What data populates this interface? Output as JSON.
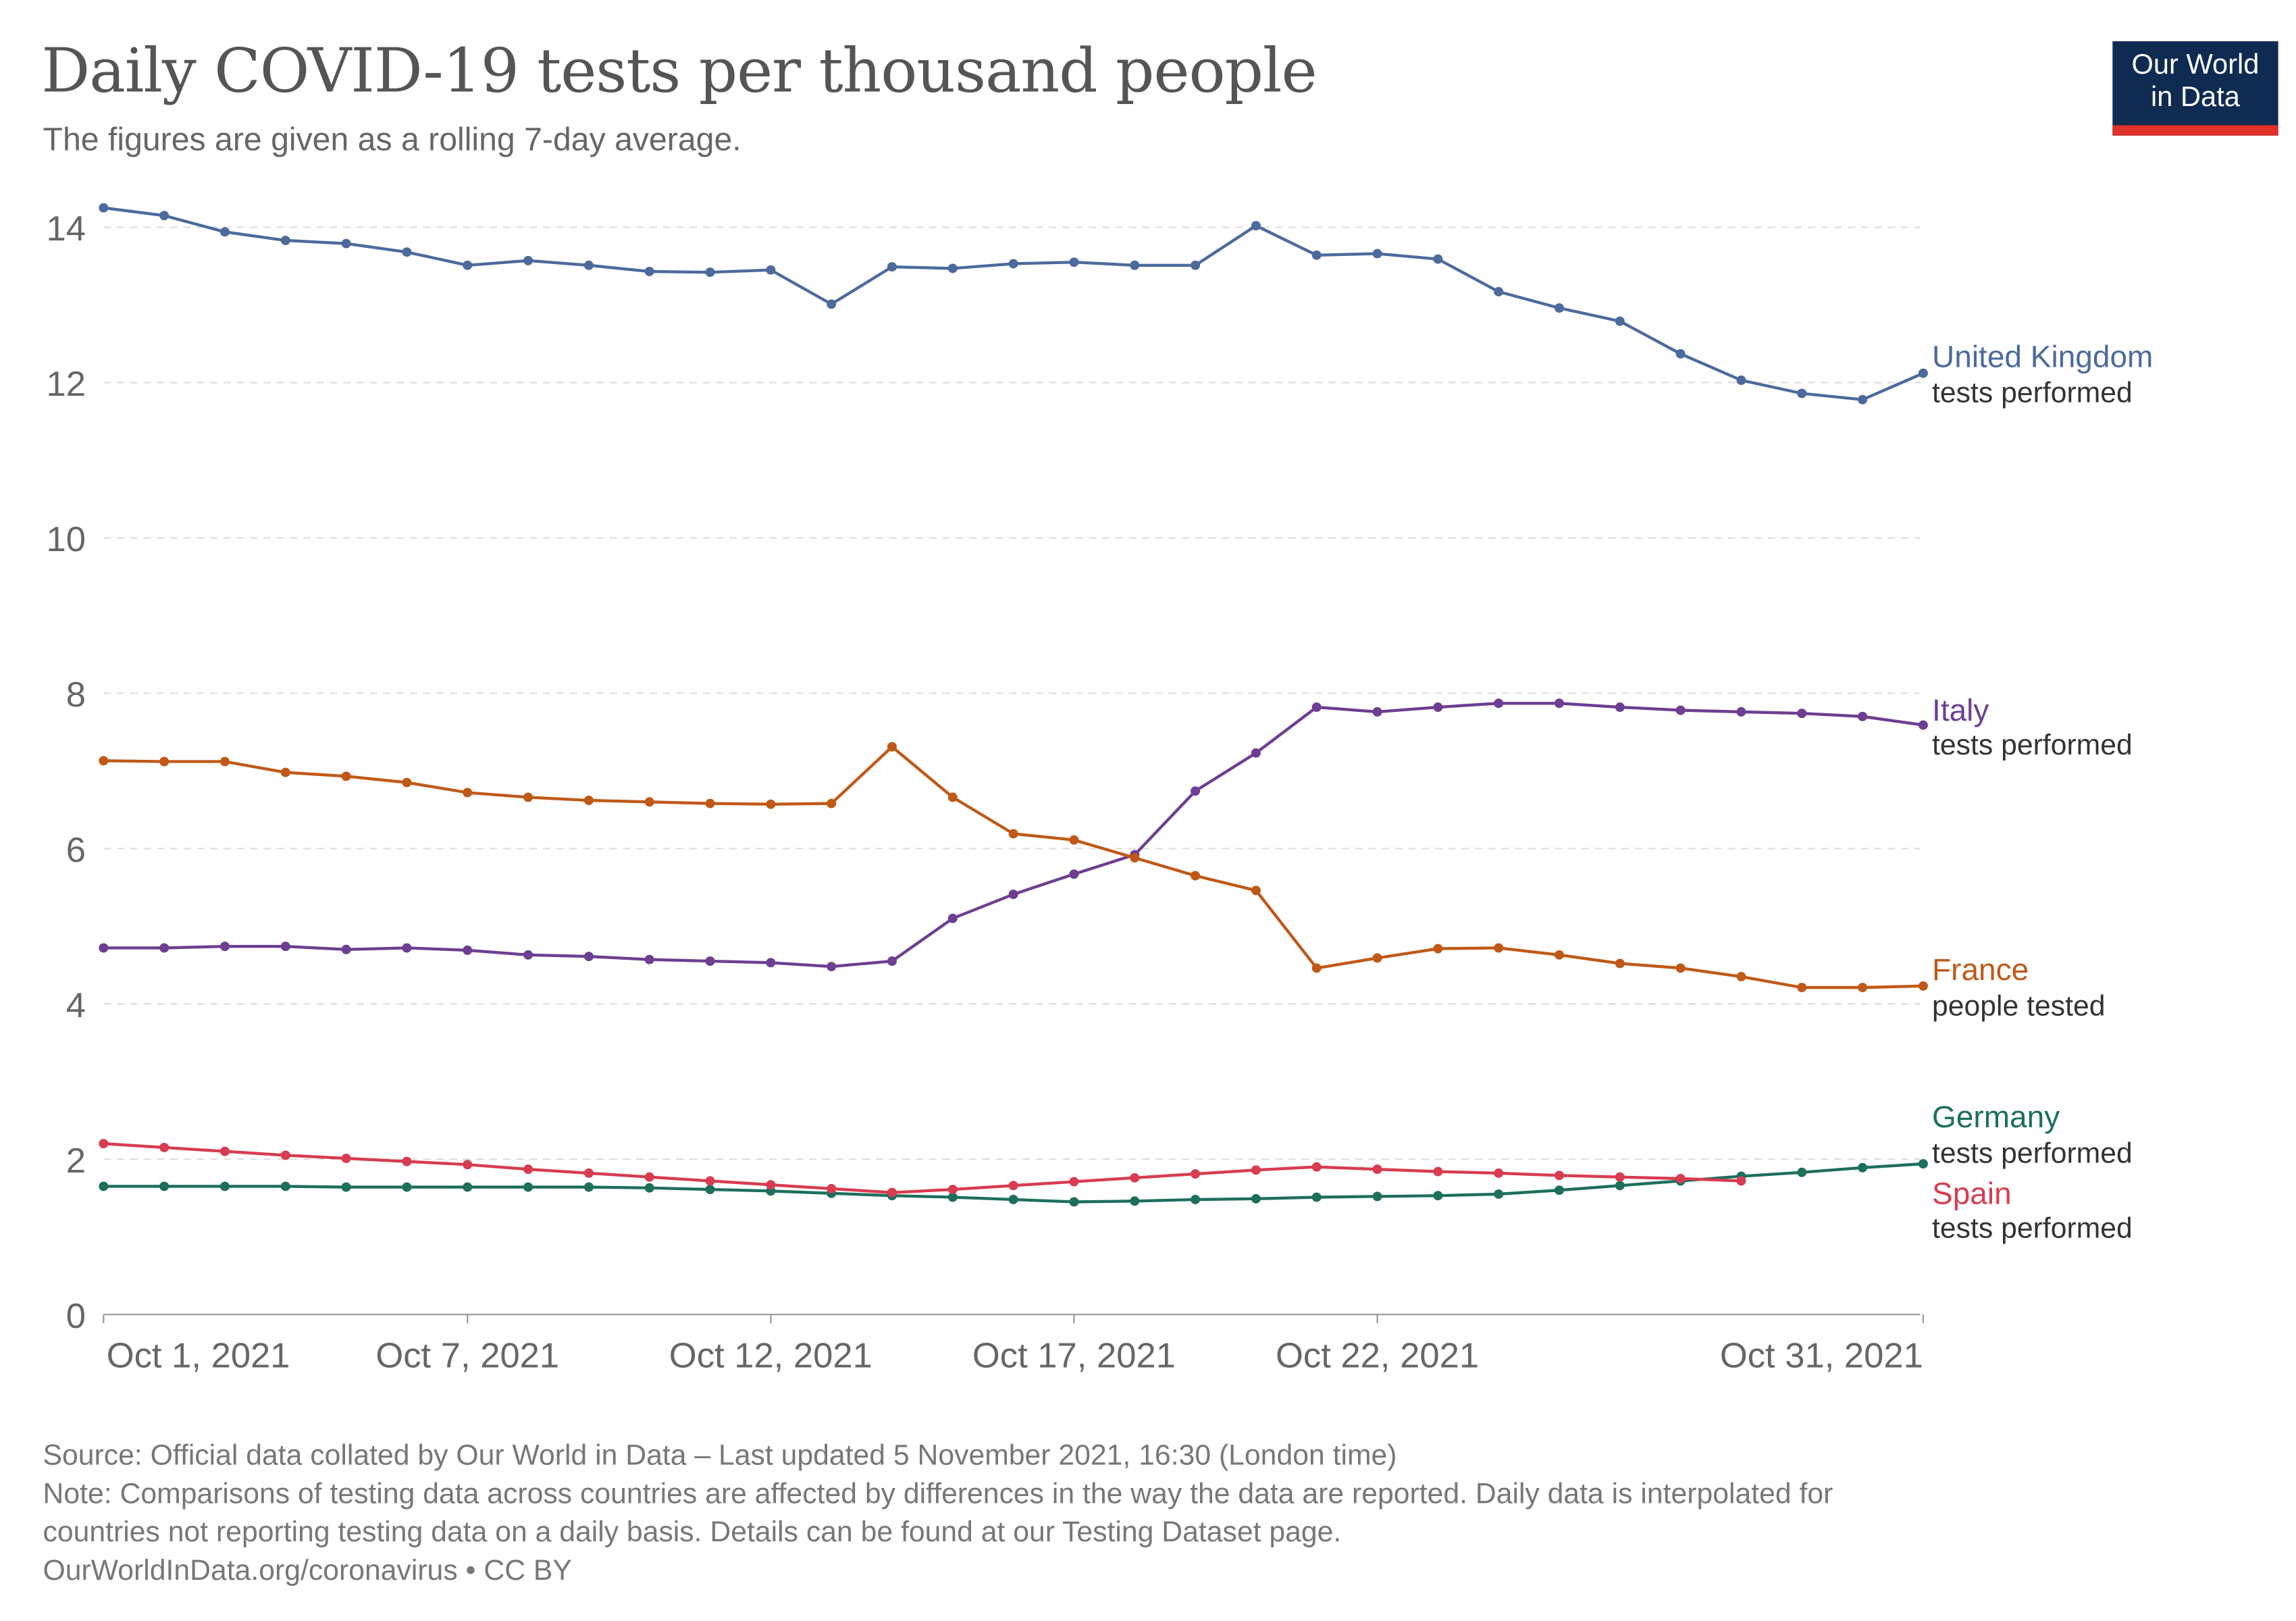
{
  "header": {
    "title": "Daily COVID-19 tests per thousand people",
    "subtitle": "The figures are given as a rolling 7-day average.",
    "logo": [
      "Our World",
      "in Data"
    ]
  },
  "footer": {
    "source": "Source: Official data collated by Our World in Data – Last updated 5 November 2021, 16:30 (London time)",
    "note1": "Note: Comparisons of testing data across countries are affected by differences in the way the data are reported. Daily data is interpolated for",
    "note2": "countries not reporting testing data on a daily basis. Details can be found at our Testing Dataset page.",
    "credit": "OurWorldInData.org/coronavirus • CC BY"
  },
  "chart_data": {
    "type": "line",
    "title": "Daily COVID-19 tests per thousand people",
    "x_start": "2021-10-01",
    "x_end": "2021-10-31",
    "x_ticks": [
      "Oct 1, 2021",
      "Oct 7, 2021",
      "Oct 12, 2021",
      "Oct 17, 2021",
      "Oct 22, 2021",
      "Oct 31, 2021"
    ],
    "x_tick_days": [
      1,
      7,
      12,
      17,
      22,
      31
    ],
    "y_ticks": [
      0,
      2,
      4,
      6,
      8,
      10,
      12,
      14
    ],
    "ylim": [
      0,
      14.3
    ],
    "grid": "horizontal dashed",
    "legend": "right, inline labels",
    "series": [
      {
        "name": "United Kingdom",
        "sub": "tests performed",
        "color": "#4c6a9c",
        "values": [
          14.25,
          14.15,
          13.94,
          13.83,
          13.79,
          13.68,
          13.51,
          13.57,
          13.51,
          13.43,
          13.42,
          13.45,
          13.01,
          13.49,
          13.47,
          13.53,
          13.55,
          13.51,
          13.51,
          14.02,
          13.64,
          13.66,
          13.59,
          13.17,
          12.96,
          12.79,
          12.37,
          12.03,
          11.86,
          11.78,
          12.12
        ]
      },
      {
        "name": "Italy",
        "sub": "tests performed",
        "color": "#6d3e91",
        "values": [
          4.72,
          4.72,
          4.74,
          4.74,
          4.7,
          4.72,
          4.69,
          4.63,
          4.61,
          4.57,
          4.55,
          4.53,
          4.48,
          4.55,
          5.1,
          5.41,
          5.67,
          5.92,
          6.74,
          7.23,
          7.82,
          7.76,
          7.82,
          7.87,
          7.87,
          7.82,
          7.78,
          7.76,
          7.74,
          7.7,
          7.59
        ]
      },
      {
        "name": "France",
        "sub": "people tested",
        "color": "#c05917",
        "values": [
          7.13,
          7.12,
          7.12,
          6.98,
          6.93,
          6.85,
          6.72,
          6.66,
          6.62,
          6.6,
          6.58,
          6.57,
          6.58,
          7.31,
          6.66,
          6.19,
          6.11,
          5.88,
          5.65,
          5.46,
          4.46,
          4.59,
          4.71,
          4.72,
          4.63,
          4.52,
          4.46,
          4.35,
          4.21,
          4.21,
          4.23
        ]
      },
      {
        "name": "Germany",
        "sub": "tests performed",
        "color": "#1d6f5c",
        "values": [
          1.65,
          1.65,
          1.65,
          1.65,
          1.64,
          1.64,
          1.64,
          1.64,
          1.64,
          1.63,
          1.61,
          1.59,
          1.56,
          1.53,
          1.51,
          1.48,
          1.45,
          1.46,
          1.48,
          1.49,
          1.51,
          1.52,
          1.53,
          1.55,
          1.6,
          1.66,
          1.72,
          1.78,
          1.83,
          1.89,
          1.94
        ]
      },
      {
        "name": "Spain",
        "sub": "tests performed",
        "color": "#d73c50",
        "values": [
          2.2,
          2.15,
          2.1,
          2.05,
          2.01,
          1.97,
          1.93,
          1.87,
          1.82,
          1.77,
          1.72,
          1.67,
          1.62,
          1.57,
          1.61,
          1.66,
          1.71,
          1.76,
          1.81,
          1.86,
          1.9,
          1.87,
          1.84,
          1.82,
          1.79,
          1.77,
          1.75,
          1.72
        ]
      }
    ]
  }
}
